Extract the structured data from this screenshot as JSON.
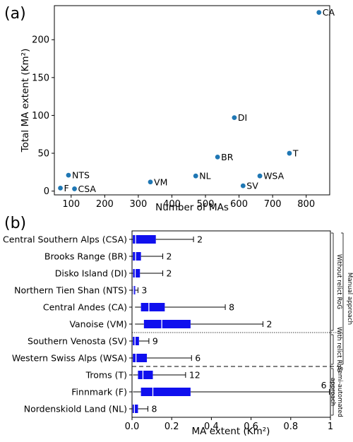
{
  "chart_data": [
    {
      "type": "scatter",
      "panel_label": "(a)",
      "xlabel": "Number of MAs",
      "ylabel": "Total MA extent (Km²)",
      "xlim": [
        50,
        870
      ],
      "ylim": [
        -5,
        245
      ],
      "x_ticks": [
        "100",
        "200",
        "300",
        "400",
        "500",
        "600",
        "700",
        "800"
      ],
      "y_ticks": [
        "0",
        "50",
        "100",
        "150",
        "200"
      ],
      "point_color": "#1f77b4",
      "points": [
        {
          "label": "CA",
          "x": 838,
          "y": 236
        },
        {
          "label": "DI",
          "x": 586,
          "y": 97
        },
        {
          "label": "T",
          "x": 750,
          "y": 50
        },
        {
          "label": "BR",
          "x": 536,
          "y": 45
        },
        {
          "label": "NTS",
          "x": 92,
          "y": 21
        },
        {
          "label": "WSA",
          "x": 662,
          "y": 20
        },
        {
          "label": "NL",
          "x": 471,
          "y": 20
        },
        {
          "label": "VM",
          "x": 336,
          "y": 12
        },
        {
          "label": "SV",
          "x": 612,
          "y": 7
        },
        {
          "label": "F",
          "x": 68,
          "y": 4
        },
        {
          "label": "CSA",
          "x": 110,
          "y": 3
        }
      ]
    },
    {
      "type": "box",
      "orientation": "horizontal",
      "panel_label": "(b)",
      "xlabel": "MA extent (Km²)",
      "xlim": [
        0,
        1
      ],
      "x_ticks": [
        "0.0",
        "0.2",
        "0.4",
        "0.6",
        "0.8",
        "1"
      ],
      "box_color": "#1010ee",
      "categories": [
        {
          "name": "Central Southern Alps (CSA)",
          "q1": 0.004,
          "median": 0.018,
          "q3": 0.12,
          "whisker_low": 0.001,
          "whisker_high": 0.31,
          "count": "2"
        },
        {
          "name": "Brooks Range (BR)",
          "q1": 0.004,
          "median": 0.018,
          "q3": 0.045,
          "whisker_low": 0.001,
          "whisker_high": 0.155,
          "count": "2"
        },
        {
          "name": "Disko Island (DI)",
          "q1": 0.005,
          "median": 0.016,
          "q3": 0.04,
          "whisker_low": 0.001,
          "whisker_high": 0.155,
          "count": "2"
        },
        {
          "name": "Northern Tien Shan (NTS)",
          "q1": 0.004,
          "median": 0.008,
          "q3": 0.016,
          "whisker_low": 0.001,
          "whisker_high": 0.03,
          "count": "3"
        },
        {
          "name": "Central Andes (CA)",
          "q1": 0.045,
          "median": 0.085,
          "q3": 0.165,
          "whisker_low": 0.015,
          "whisker_high": 0.47,
          "count": "8"
        },
        {
          "name": "Vanoise (VM)",
          "q1": 0.06,
          "median": 0.15,
          "q3": 0.295,
          "whisker_low": 0.015,
          "whisker_high": 0.66,
          "count": "2"
        },
        {
          "name": "Southern Venosta (SV)",
          "q1": 0.004,
          "median": 0.015,
          "q3": 0.035,
          "whisker_low": 0.001,
          "whisker_high": 0.085,
          "count": "9"
        },
        {
          "name": "Western Swiss Alps (WSA)",
          "q1": 0.004,
          "median": 0.02,
          "q3": 0.075,
          "whisker_low": 0.001,
          "whisker_high": 0.3,
          "count": "6"
        },
        {
          "name": "Troms (T)",
          "q1": 0.03,
          "median": 0.055,
          "q3": 0.105,
          "whisker_low": 0.005,
          "whisker_high": 0.27,
          "count": "12"
        },
        {
          "name": "Finnmark (F)",
          "q1": 0.045,
          "median": 0.105,
          "q3": 0.295,
          "whisker_low": 0.005,
          "whisker_high": 0.995,
          "count": "6"
        },
        {
          "name": "Nordenskiold Land (NL)",
          "q1": 0.003,
          "median": 0.012,
          "q3": 0.03,
          "whisker_low": 0.001,
          "whisker_high": 0.08,
          "count": "8"
        }
      ],
      "groups": [
        {
          "label": "Manual approach",
          "rows": [
            0,
            7
          ]
        },
        {
          "label": "Without relict RoG",
          "rows": [
            0,
            5
          ]
        },
        {
          "label": "With relict RoG",
          "rows": [
            6,
            7
          ]
        },
        {
          "label": "Semi-automated approach",
          "rows": [
            8,
            10
          ]
        }
      ]
    }
  ]
}
